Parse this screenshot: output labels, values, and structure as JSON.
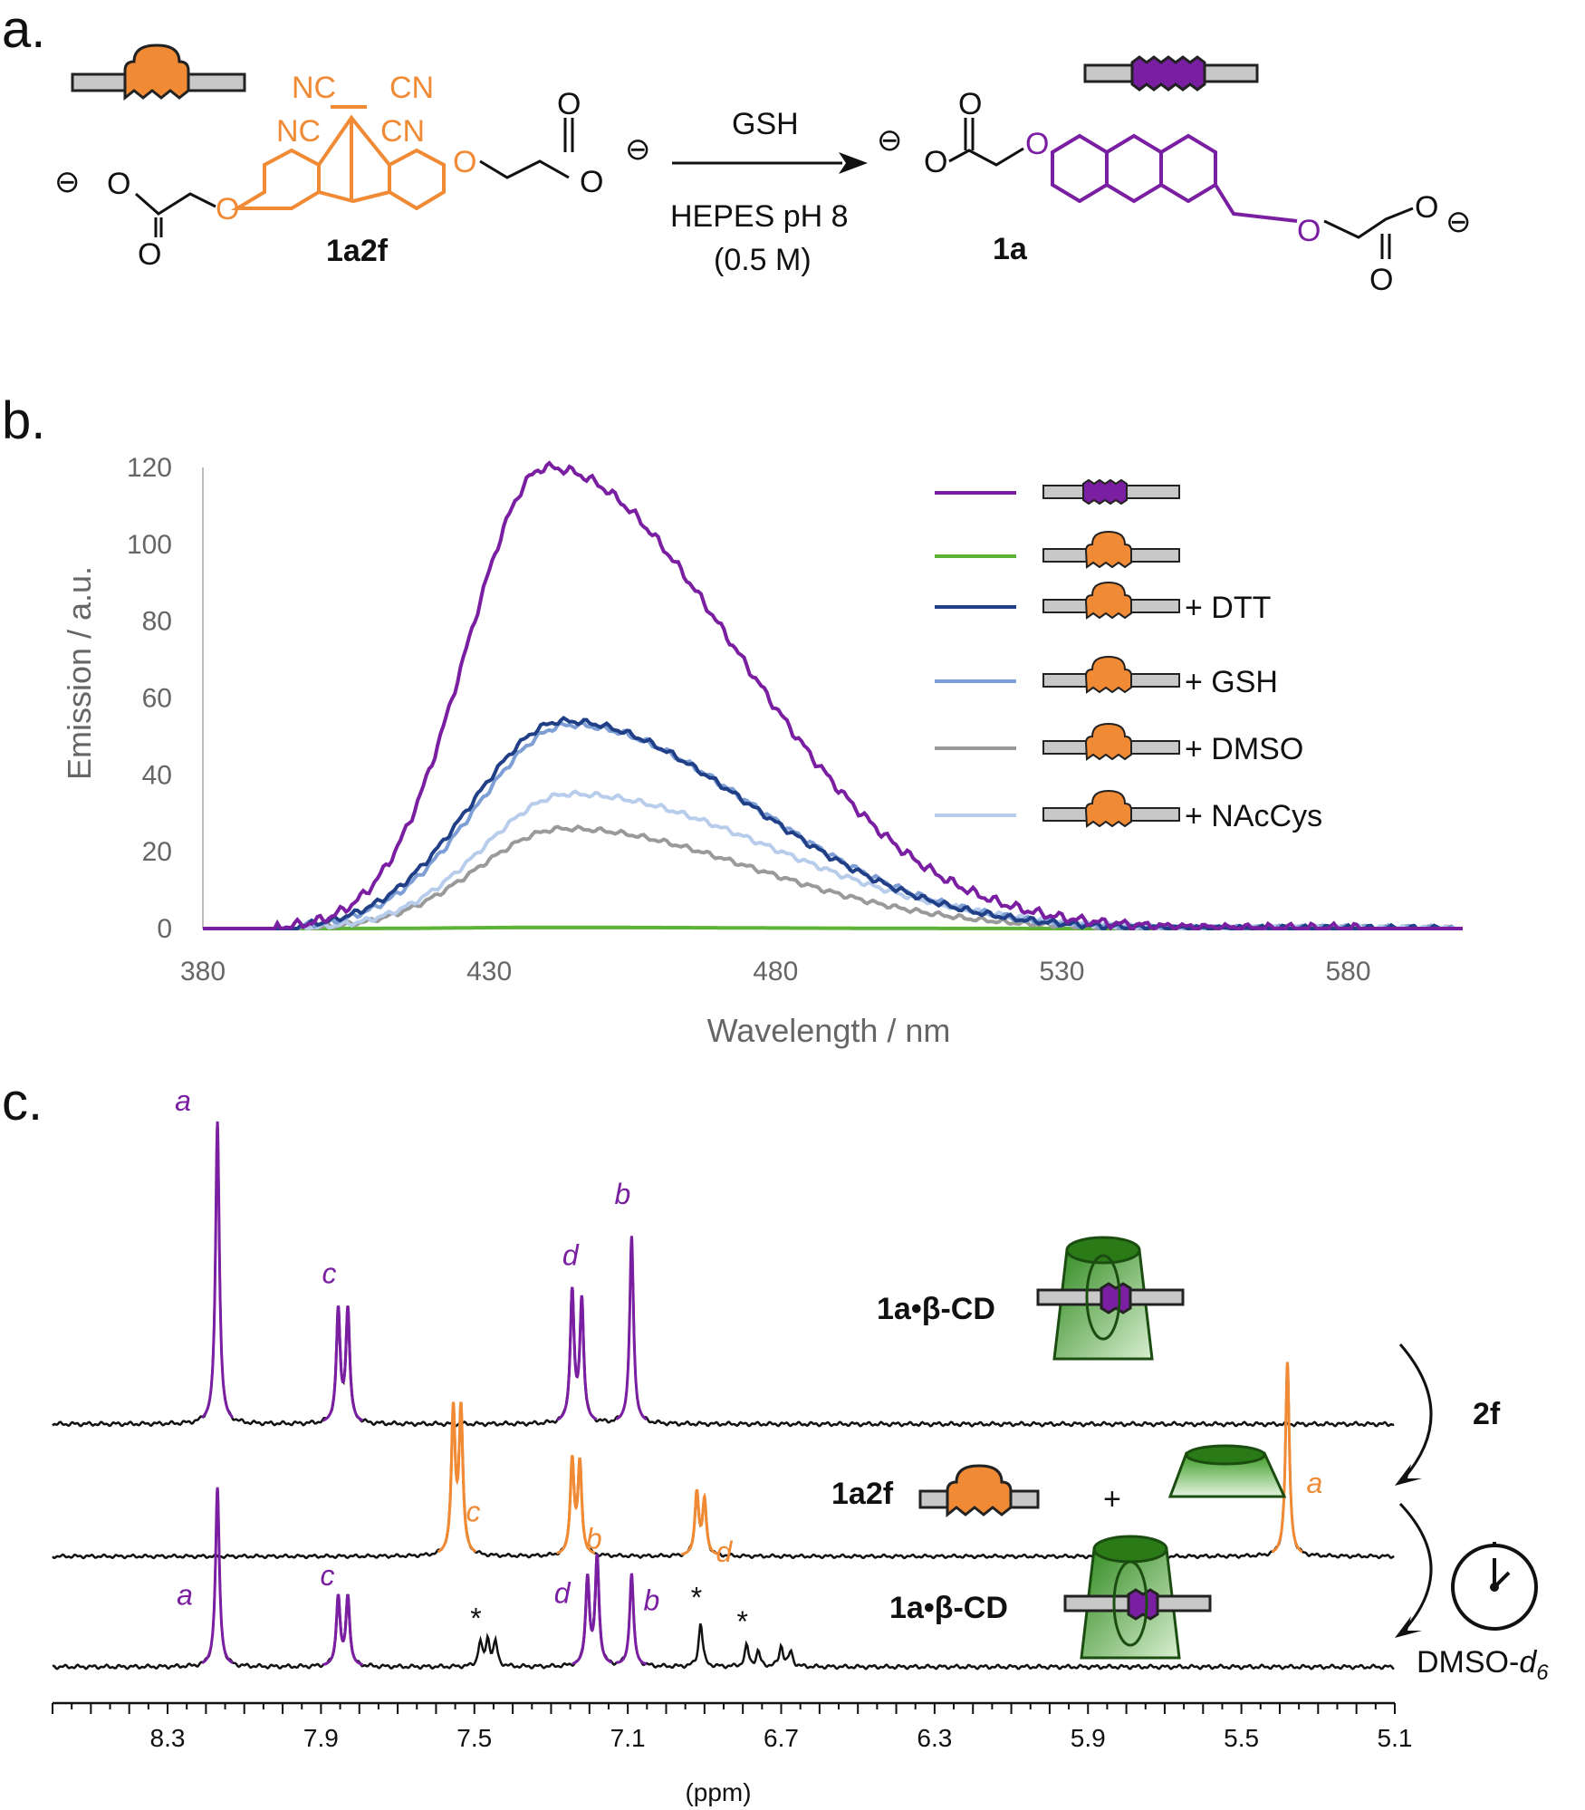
{
  "panels": {
    "a": "a.",
    "b": "b.",
    "c": "c."
  },
  "colors": {
    "purple": "#7a1fa2",
    "orange": "#f08a34",
    "green": "#5cb336",
    "dark_blue": "#213f86",
    "mid_blue": "#7d9fd6",
    "gray": "#9a9a9a",
    "light_blue": "#b8cdec"
  },
  "scheme": {
    "reactant_label": "1a2f",
    "product_label": "1a",
    "arrow_top": "GSH",
    "arrow_bottom_1": "HEPES pH 8",
    "arrow_bottom_2": "(0.5 M)",
    "cn_labels": [
      "NC",
      "CN",
      "NC",
      "CN"
    ],
    "atoms": [
      "O",
      "O",
      "O",
      "O",
      "O",
      "O",
      "O",
      "O",
      "O",
      "O",
      "O",
      "O"
    ],
    "charges": [
      "⊖",
      "⊖",
      "⊖",
      "⊖"
    ]
  },
  "chart_data": [
    {
      "type": "line",
      "xlabel": "Wavelength / nm",
      "ylabel": "Emission / a.u.",
      "xlim": [
        380,
        600
      ],
      "ylim": [
        0,
        120
      ],
      "xticks": [
        380,
        430,
        480,
        530,
        580
      ],
      "yticks": [
        0,
        20,
        40,
        60,
        80,
        100,
        120
      ],
      "legend_position": "top-right",
      "series": [
        {
          "name": "",
          "color": "#7a1fa2",
          "peak": 120,
          "center": 440,
          "sigma_left": 14,
          "sigma_right": 33,
          "start": 393,
          "end": 583
        },
        {
          "name": "",
          "color": "#5cb336",
          "peak": 0.3,
          "center": 440,
          "sigma_left": 14,
          "sigma_right": 33,
          "start": 393,
          "end": 598
        },
        {
          "name": "+ DTT",
          "color": "#213f86",
          "peak": 54,
          "center": 443,
          "sigma_left": 16,
          "sigma_right": 32,
          "start": 397,
          "end": 598
        },
        {
          "name": "+ GSH",
          "color": "#7d9fd6",
          "peak": 53,
          "center": 444,
          "sigma_left": 16,
          "sigma_right": 32,
          "start": 397,
          "end": 598
        },
        {
          "name": "+ DMSO",
          "color": "#9a9a9a",
          "peak": 26,
          "center": 443,
          "sigma_left": 15,
          "sigma_right": 33,
          "start": 397,
          "end": 598
        },
        {
          "name": "+ NAcCys",
          "color": "#b8cdec",
          "peak": 35,
          "center": 444,
          "sigma_left": 15,
          "sigma_right": 35,
          "start": 397,
          "end": 598
        }
      ]
    },
    {
      "type": "line",
      "xlabel": "(ppm)",
      "xlim": [
        8.6,
        5.1
      ],
      "xticks": [
        8.3,
        7.9,
        7.5,
        7.1,
        6.7,
        6.3,
        5.9,
        5.5,
        5.1
      ],
      "traces": [
        {
          "name": "1a•β-CD",
          "peaks": [
            {
              "ppm": 8.17,
              "height": 1.0,
              "color": "#7a1fa2",
              "label": "a"
            },
            {
              "ppm": 7.855,
              "height": 0.37,
              "color": "#7a1fa2",
              "label": "c"
            },
            {
              "ppm": 7.83,
              "height": 0.37,
              "color": "#7a1fa2",
              "label": ""
            },
            {
              "ppm": 7.245,
              "height": 0.43,
              "color": "#7a1fa2",
              "label": "d"
            },
            {
              "ppm": 7.22,
              "height": 0.4,
              "color": "#7a1fa2",
              "label": ""
            },
            {
              "ppm": 7.09,
              "height": 0.62,
              "color": "#7a1fa2",
              "label": "b"
            }
          ]
        },
        {
          "name": "1a2f",
          "peaks": [
            {
              "ppm": 7.555,
              "height": 0.55,
              "color": "#f08a34",
              "label": "c"
            },
            {
              "ppm": 7.535,
              "height": 0.55,
              "color": "#f08a34",
              "label": ""
            },
            {
              "ppm": 7.245,
              "height": 0.36,
              "color": "#f08a34",
              "label": "b"
            },
            {
              "ppm": 7.225,
              "height": 0.35,
              "color": "#f08a34",
              "label": ""
            },
            {
              "ppm": 6.92,
              "height": 0.24,
              "color": "#f08a34",
              "label": "d"
            },
            {
              "ppm": 6.9,
              "height": 0.21,
              "color": "#f08a34",
              "label": ""
            },
            {
              "ppm": 5.38,
              "height": 0.75,
              "color": "#f08a34",
              "label": "a"
            }
          ]
        },
        {
          "name": "1a•β-CD",
          "peaks": [
            {
              "ppm": 8.17,
              "height": 0.6,
              "color": "#7a1fa2",
              "label": "a"
            },
            {
              "ppm": 7.855,
              "height": 0.23,
              "color": "#7a1fa2",
              "label": "c"
            },
            {
              "ppm": 7.83,
              "height": 0.23,
              "color": "#7a1fa2",
              "label": ""
            },
            {
              "ppm": 7.485,
              "height": 0.08,
              "color": "#111111",
              "label": "*"
            },
            {
              "ppm": 7.465,
              "height": 0.09,
              "color": "#111111",
              "label": ""
            },
            {
              "ppm": 7.445,
              "height": 0.08,
              "color": "#111111",
              "label": ""
            },
            {
              "ppm": 7.205,
              "height": 0.29,
              "color": "#7a1fa2",
              "label": "d"
            },
            {
              "ppm": 7.18,
              "height": 0.36,
              "color": "#7a1fa2",
              "label": ""
            },
            {
              "ppm": 7.09,
              "height": 0.31,
              "color": "#7a1fa2",
              "label": "b"
            },
            {
              "ppm": 6.91,
              "height": 0.15,
              "color": "#111111",
              "label": "*"
            },
            {
              "ppm": 6.79,
              "height": 0.07,
              "color": "#111111",
              "label": "*"
            },
            {
              "ppm": 6.76,
              "height": 0.05,
              "color": "#111111",
              "label": ""
            },
            {
              "ppm": 6.7,
              "height": 0.07,
              "color": "#111111",
              "label": ""
            },
            {
              "ppm": 6.675,
              "height": 0.05,
              "color": "#111111",
              "label": ""
            }
          ]
        }
      ],
      "annotations": {
        "reagent": "2f",
        "plus": "+",
        "solvent": "DMSO-",
        "solvent_sub": "d",
        "solvent_sub_n": "6"
      }
    }
  ]
}
